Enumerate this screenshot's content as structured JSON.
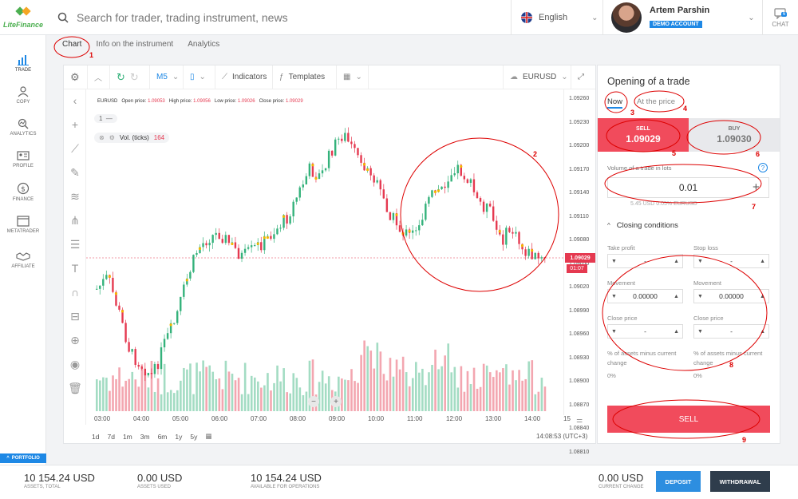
{
  "brand": {
    "name": "LiteFinance"
  },
  "search": {
    "placeholder": "Search for trader, trading instrument, news"
  },
  "header": {
    "language": "English",
    "user_name": "Artem Parshin",
    "account_type": "DEMO ACCOUNT",
    "chat_label": "CHAT",
    "chat_count": "6"
  },
  "sidebar": {
    "items": [
      {
        "label": "TRADE",
        "icon": "chart-bars-icon"
      },
      {
        "label": "COPY",
        "icon": "user-copy-icon"
      },
      {
        "label": "ANALYTICS",
        "icon": "analytics-icon"
      },
      {
        "label": "PROFILE",
        "icon": "profile-card-icon"
      },
      {
        "label": "FINANCE",
        "icon": "dollar-icon"
      },
      {
        "label": "METATRADER",
        "icon": "window-icon"
      },
      {
        "label": "AFFILIATE",
        "icon": "handshake-icon"
      }
    ],
    "portfolio": "PORTFOLIO"
  },
  "tabs": [
    "Chart",
    "Info on the instrument",
    "Analytics"
  ],
  "toolbar": {
    "timeframe": "M5",
    "indicators": "Indicators",
    "templates": "Templates",
    "symbol": "EURUSD"
  },
  "legend": {
    "symbol": "EURUSD",
    "open_label": "Open price:",
    "open": "1.09053",
    "high_label": "High price:",
    "high": "1.09056",
    "low_label": "Low price:",
    "low": "1.09026",
    "close_label": "Close price:",
    "close": "1.09029"
  },
  "chart_controls": {
    "counter": "1",
    "vol_label": "Vol. (ticks)",
    "vol_value": "164"
  },
  "price_axis": [
    "1.09260",
    "1.09230",
    "1.09200",
    "1.09170",
    "1.09140",
    "1.09110",
    "1.09080",
    "1.09050",
    "1.09020",
    "1.08990",
    "1.08960",
    "1.08930",
    "1.08900",
    "1.08870",
    "1.08840",
    "1.08810"
  ],
  "current_price": "1.09029",
  "current_timer": "01:07",
  "time_axis": [
    "03:00",
    "04:00",
    "05:00",
    "06:00",
    "07:00",
    "08:00",
    "09:00",
    "10:00",
    "11:00",
    "12:00",
    "13:00",
    "14:00",
    "15"
  ],
  "ranges": [
    "1d",
    "7d",
    "1m",
    "3m",
    "6m",
    "1y",
    "5y"
  ],
  "clock": "14:08:53 (UTC+3)",
  "trade_panel": {
    "title": "Opening of a trade",
    "mode_now": "Now",
    "mode_price": "At the price",
    "sell_label": "SELL",
    "sell_price": "1.09029",
    "buy_label": "BUY",
    "buy_price": "1.09030",
    "volume_label": "Volume of a trade in lots",
    "volume_value": "0.01",
    "volume_note": "5.45 USD  0.05% EURUSD",
    "closing_title": "Closing conditions",
    "take_profit": "Take profit",
    "stop_loss": "Stop loss",
    "tp_value": "-",
    "sl_value": "-",
    "movement1": "Movement",
    "movement2": "Movement",
    "mv1_value": "0.00000",
    "mv2_value": "0.00000",
    "close_price1": "Close price",
    "close_price2": "Close price",
    "cp1_value": "-",
    "cp2_value": "-",
    "pct_label1": "% of assets minus current change",
    "pct_label2": "% of assets minus current change",
    "pct_value1": "0%",
    "pct_value2": "0%",
    "sell_button": "SELL"
  },
  "bottom": {
    "assets_total": "10 154.24 USD",
    "assets_total_label": "ASSETS, TOTAL",
    "assets_used": "0.00 USD",
    "assets_used_label": "ASSETS USED",
    "available": "10 154.24 USD",
    "available_label": "AVAILABLE FOR OPERATIONS",
    "current_change": "0.00 USD",
    "current_change_label": "CURRENT CHANGE",
    "deposit": "DEPOSIT",
    "withdrawal": "WITHDRAWAL"
  },
  "annotations": [
    "1",
    "2",
    "3",
    "4",
    "5",
    "6",
    "7",
    "8",
    "9"
  ],
  "colors": {
    "up": "#34b27b",
    "down": "#e53950",
    "accent": "#1e88e5",
    "sell": "#f14b5c",
    "annotation": "#dd0000"
  }
}
